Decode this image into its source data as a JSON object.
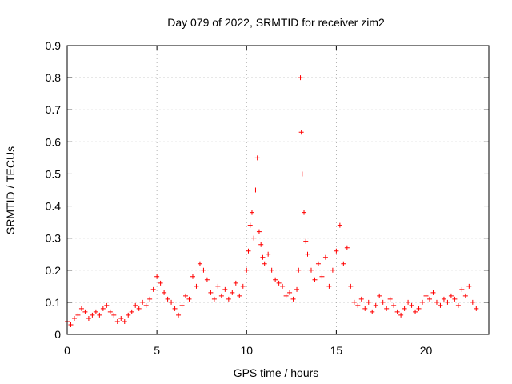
{
  "chart_data": {
    "type": "scatter",
    "title": "Day 079 of 2022, SRMTID for receiver zim2",
    "xlabel": "GPS time / hours",
    "ylabel": "SRMTID / TECUs",
    "xlim": [
      0,
      23.5
    ],
    "ylim": [
      0,
      0.9
    ],
    "xticks": [
      0,
      5,
      10,
      15,
      20
    ],
    "xtick_labels": [
      "0",
      "5",
      "10",
      "15",
      "20"
    ],
    "yticks": [
      0,
      0.1,
      0.2,
      0.3,
      0.4,
      0.5,
      0.6,
      0.7,
      0.8,
      0.9
    ],
    "ytick_labels": [
      "0",
      "0.1",
      "0.2",
      "0.3",
      "0.4",
      "0.5",
      "0.6",
      "0.7",
      "0.8",
      "0.9"
    ],
    "grid": true,
    "marker": "+",
    "series": [
      {
        "name": "SRMTID",
        "color": "#ff0000",
        "x": [
          0.0,
          0.2,
          0.4,
          0.6,
          0.8,
          1.0,
          1.2,
          1.4,
          1.6,
          1.8,
          2.0,
          2.2,
          2.4,
          2.6,
          2.8,
          3.0,
          3.2,
          3.4,
          3.6,
          3.8,
          4.0,
          4.2,
          4.4,
          4.6,
          4.8,
          5.0,
          5.2,
          5.4,
          5.6,
          5.8,
          6.0,
          6.2,
          6.4,
          6.6,
          6.8,
          7.0,
          7.2,
          7.4,
          7.6,
          7.8,
          8.0,
          8.2,
          8.4,
          8.6,
          8.8,
          9.0,
          9.2,
          9.4,
          9.6,
          9.8,
          10.0,
          10.1,
          10.2,
          10.3,
          10.4,
          10.5,
          10.6,
          10.7,
          10.8,
          10.9,
          11.0,
          11.2,
          11.4,
          11.6,
          11.8,
          12.0,
          12.2,
          12.4,
          12.6,
          12.8,
          12.9,
          13.0,
          13.05,
          13.1,
          13.2,
          13.3,
          13.4,
          13.6,
          13.8,
          14.0,
          14.2,
          14.4,
          14.6,
          14.8,
          15.0,
          15.2,
          15.4,
          15.6,
          15.8,
          16.0,
          16.2,
          16.4,
          16.6,
          16.8,
          17.0,
          17.2,
          17.4,
          17.6,
          17.8,
          18.0,
          18.2,
          18.4,
          18.6,
          18.8,
          19.0,
          19.2,
          19.4,
          19.6,
          19.8,
          20.0,
          20.2,
          20.4,
          20.6,
          20.8,
          21.0,
          21.2,
          21.4,
          21.6,
          21.8,
          22.0,
          22.2,
          22.4,
          22.6,
          22.8
        ],
        "y": [
          0.04,
          0.03,
          0.05,
          0.06,
          0.08,
          0.07,
          0.05,
          0.06,
          0.07,
          0.06,
          0.08,
          0.09,
          0.07,
          0.06,
          0.04,
          0.05,
          0.04,
          0.06,
          0.07,
          0.09,
          0.08,
          0.1,
          0.09,
          0.11,
          0.14,
          0.18,
          0.16,
          0.13,
          0.11,
          0.1,
          0.08,
          0.06,
          0.09,
          0.12,
          0.11,
          0.18,
          0.15,
          0.22,
          0.2,
          0.17,
          0.13,
          0.11,
          0.15,
          0.12,
          0.14,
          0.11,
          0.13,
          0.16,
          0.12,
          0.15,
          0.2,
          0.26,
          0.34,
          0.38,
          0.3,
          0.45,
          0.55,
          0.32,
          0.28,
          0.24,
          0.22,
          0.25,
          0.2,
          0.17,
          0.16,
          0.15,
          0.12,
          0.13,
          0.11,
          0.14,
          0.2,
          0.8,
          0.63,
          0.5,
          0.38,
          0.29,
          0.25,
          0.2,
          0.17,
          0.22,
          0.18,
          0.24,
          0.15,
          0.2,
          0.26,
          0.34,
          0.22,
          0.27,
          0.15,
          0.1,
          0.09,
          0.11,
          0.08,
          0.1,
          0.07,
          0.09,
          0.12,
          0.1,
          0.08,
          0.11,
          0.09,
          0.07,
          0.06,
          0.08,
          0.1,
          0.09,
          0.07,
          0.08,
          0.1,
          0.12,
          0.11,
          0.13,
          0.1,
          0.09,
          0.11,
          0.1,
          0.12,
          0.11,
          0.09,
          0.14,
          0.12,
          0.15,
          0.1,
          0.08
        ]
      }
    ]
  }
}
